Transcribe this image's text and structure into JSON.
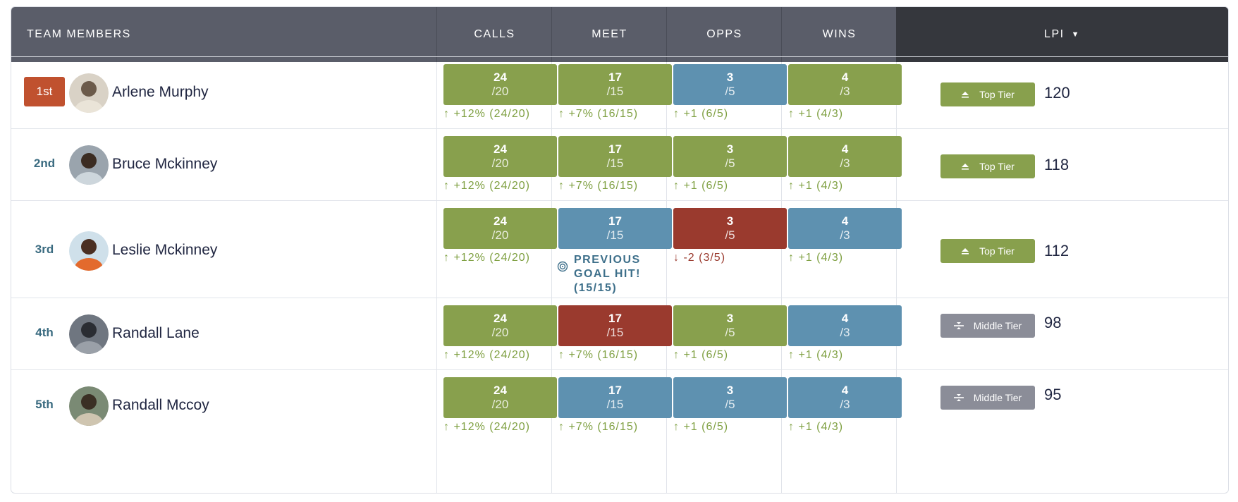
{
  "header": {
    "team_members": "TEAM MEMBERS",
    "calls": "CALLS",
    "meet": "MEET",
    "opps": "OPPS",
    "wins": "WINS",
    "lpi": "LPI",
    "sort_icon": "caret-down-icon"
  },
  "colors": {
    "green": "#88a04d",
    "blue": "#5e91b0",
    "red": "#9a3a2e",
    "header": "#5a5d69",
    "header_active": "#35373d",
    "rank_first": "#c0512f"
  },
  "rows": [
    {
      "rank": "1st",
      "name": "Arlene Murphy",
      "calls": {
        "value": "24",
        "goal": "/20",
        "status": "green",
        "delta": "+12% (24/20)",
        "dir": "up"
      },
      "meet": {
        "value": "17",
        "goal": "/15",
        "status": "green",
        "delta": "+7% (16/15)",
        "dir": "up"
      },
      "opps": {
        "value": "3",
        "goal": "/5",
        "status": "blue",
        "delta": "+1 (6/5)",
        "dir": "up"
      },
      "wins": {
        "value": "4",
        "goal": "/3",
        "status": "green",
        "delta": "+1 (4/3)",
        "dir": "up"
      },
      "tier": "Top Tier",
      "tier_kind": "top",
      "score": "120"
    },
    {
      "rank": "2nd",
      "name": "Bruce Mckinney",
      "calls": {
        "value": "24",
        "goal": "/20",
        "status": "green",
        "delta": "+12% (24/20)",
        "dir": "up"
      },
      "meet": {
        "value": "17",
        "goal": "/15",
        "status": "green",
        "delta": "+7% (16/15)",
        "dir": "up"
      },
      "opps": {
        "value": "3",
        "goal": "/5",
        "status": "green",
        "delta": "+1 (6/5)",
        "dir": "up"
      },
      "wins": {
        "value": "4",
        "goal": "/3",
        "status": "green",
        "delta": "+1 (4/3)",
        "dir": "up"
      },
      "tier": "Top Tier",
      "tier_kind": "top",
      "score": "118"
    },
    {
      "rank": "3rd",
      "name": "Leslie Mckinney",
      "calls": {
        "value": "24",
        "goal": "/20",
        "status": "green",
        "delta": "+12% (24/20)",
        "dir": "up"
      },
      "meet": {
        "value": "17",
        "goal": "/15",
        "status": "blue",
        "note_lines": [
          "PREVIOUS",
          "GOAL HIT!",
          "(15/15)"
        ]
      },
      "opps": {
        "value": "3",
        "goal": "/5",
        "status": "red",
        "delta": "-2 (3/5)",
        "dir": "down"
      },
      "wins": {
        "value": "4",
        "goal": "/3",
        "status": "blue",
        "delta": "+1 (4/3)",
        "dir": "up"
      },
      "tier": "Top Tier",
      "tier_kind": "top",
      "score": "112"
    },
    {
      "rank": "4th",
      "name": "Randall Lane",
      "calls": {
        "value": "24",
        "goal": "/20",
        "status": "green",
        "delta": "+12% (24/20)",
        "dir": "up"
      },
      "meet": {
        "value": "17",
        "goal": "/15",
        "status": "red",
        "delta": "+7% (16/15)",
        "dir": "up"
      },
      "opps": {
        "value": "3",
        "goal": "/5",
        "status": "green",
        "delta": "+1 (6/5)",
        "dir": "up"
      },
      "wins": {
        "value": "4",
        "goal": "/3",
        "status": "blue",
        "delta": "+1 (4/3)",
        "dir": "up"
      },
      "tier": "Middle Tier",
      "tier_kind": "mid",
      "score": "98"
    },
    {
      "rank": "5th",
      "name": "Randall Mccoy",
      "calls": {
        "value": "24",
        "goal": "/20",
        "status": "green",
        "delta": "+12% (24/20)",
        "dir": "up"
      },
      "meet": {
        "value": "17",
        "goal": "/15",
        "status": "blue",
        "delta": "+7% (16/15)",
        "dir": "up"
      },
      "opps": {
        "value": "3",
        "goal": "/5",
        "status": "blue",
        "delta": "+1 (6/5)",
        "dir": "up"
      },
      "wins": {
        "value": "4",
        "goal": "/3",
        "status": "blue",
        "delta": "+1 (4/3)",
        "dir": "up"
      },
      "tier": "Middle Tier",
      "tier_kind": "mid",
      "score": "95"
    }
  ]
}
